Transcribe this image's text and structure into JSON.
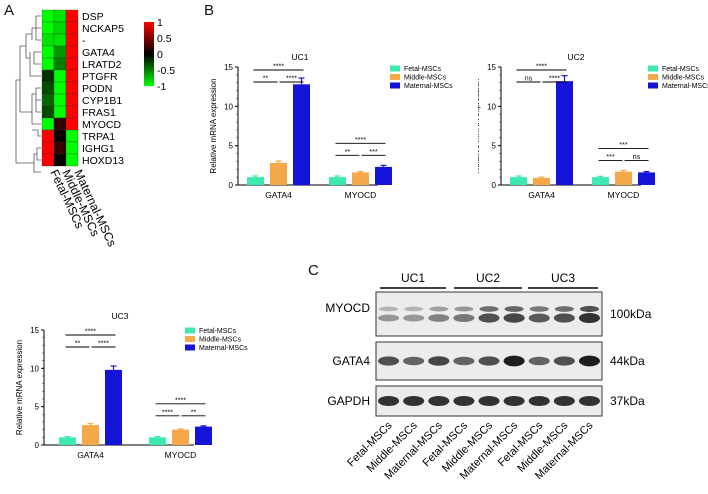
{
  "panels": {
    "A": {
      "letter": "A",
      "genes": [
        "DSP",
        "NCKAP5",
        "-",
        "GATA4",
        "LRATD2",
        "PTGFR",
        "PODN",
        "CYP1B1",
        "FRAS1",
        "MYOCD",
        "TRPA1",
        "IGHG1",
        "HOXD13"
      ],
      "samples": [
        "Fetal-MSCs",
        "Middle-MSCs",
        "Maternal-MSCs"
      ],
      "matrix": [
        [
          -1.0,
          -0.9,
          1.0
        ],
        [
          -1.0,
          -0.85,
          1.0
        ],
        [
          -0.9,
          -0.9,
          1.0
        ],
        [
          -1.0,
          -0.6,
          1.0
        ],
        [
          -1.0,
          -0.5,
          1.0
        ],
        [
          -0.2,
          -1.0,
          1.0
        ],
        [
          -0.3,
          -1.0,
          1.0
        ],
        [
          -0.4,
          -1.0,
          1.0
        ],
        [
          -0.3,
          -1.0,
          1.0
        ],
        [
          -1.0,
          0.2,
          1.0
        ],
        [
          1.0,
          0.0,
          -1.0
        ],
        [
          1.0,
          0.2,
          -1.0
        ],
        [
          1.0,
          0.0,
          -1.0
        ]
      ],
      "scale_ticks": [
        "1",
        "0.5",
        "0",
        "-0.5",
        "-1"
      ],
      "colors": {
        "high": "#ff0000",
        "mid": "#000000",
        "low": "#00ff00"
      }
    },
    "B": {
      "letter": "B"
    },
    "C": {
      "letter": "C"
    }
  },
  "chart_data": [
    {
      "type": "bar",
      "id": "UC1",
      "title": "UC1",
      "ylabel": "Relative mRNA expression",
      "ylim": [
        0,
        15
      ],
      "yticks": [
        "0",
        "5",
        "10",
        "15"
      ],
      "categories": [
        "GATA4",
        "MYOCD"
      ],
      "series": [
        {
          "name": "Fetal-MSCs",
          "values": [
            1.0,
            1.0
          ],
          "errors": [
            0.15,
            0.15
          ],
          "color": "#3de8b2"
        },
        {
          "name": "Middle-MSCs",
          "values": [
            2.8,
            1.6
          ],
          "errors": [
            0.25,
            0.1
          ],
          "color": "#f4a84a"
        },
        {
          "name": "Maternal-MSCs",
          "values": [
            12.8,
            2.3
          ],
          "errors": [
            0.8,
            0.2
          ],
          "color": "#1414d8"
        }
      ],
      "significance": {
        "GATA4": [
          {
            "from": 0,
            "to": 2,
            "label": "****"
          },
          {
            "from": 0,
            "to": 1,
            "label": "**"
          },
          {
            "from": 1,
            "to": 2,
            "label": "****"
          }
        ],
        "MYOCD": [
          {
            "from": 0,
            "to": 2,
            "label": "****"
          },
          {
            "from": 0,
            "to": 1,
            "label": "**"
          },
          {
            "from": 1,
            "to": 2,
            "label": "***"
          }
        ]
      }
    },
    {
      "type": "bar",
      "id": "UC2",
      "title": "UC2",
      "ylabel": "Relative mRNA expression",
      "ylim": [
        0,
        15
      ],
      "yticks": [
        "0",
        "5",
        "10",
        "15"
      ],
      "categories": [
        "GATA4",
        "MYOCD"
      ],
      "series": [
        {
          "name": "Fetal-MSCs",
          "values": [
            1.0,
            1.0
          ],
          "errors": [
            0.15,
            0.1
          ],
          "color": "#3de8b2"
        },
        {
          "name": "Middle-MSCs",
          "values": [
            0.9,
            1.7
          ],
          "errors": [
            0.1,
            0.15
          ],
          "color": "#f4a84a"
        },
        {
          "name": "Maternal-MSCs",
          "values": [
            13.2,
            1.6
          ],
          "errors": [
            0.7,
            0.1
          ],
          "color": "#1414d8"
        }
      ],
      "significance": {
        "GATA4": [
          {
            "from": 0,
            "to": 2,
            "label": "****"
          },
          {
            "from": 0,
            "to": 1,
            "label": "ns"
          },
          {
            "from": 1,
            "to": 2,
            "label": "****"
          }
        ],
        "MYOCD": [
          {
            "from": 0,
            "to": 2,
            "label": "***"
          },
          {
            "from": 0,
            "to": 1,
            "label": "***"
          },
          {
            "from": 1,
            "to": 2,
            "label": "ns"
          }
        ]
      }
    },
    {
      "type": "bar",
      "id": "UC3",
      "title": "UC3",
      "ylabel": "Relative mRNA expression",
      "ylim": [
        0,
        15
      ],
      "yticks": [
        "0",
        "5",
        "10",
        "15"
      ],
      "categories": [
        "GATA4",
        "MYOCD"
      ],
      "series": [
        {
          "name": "Fetal-MSCs",
          "values": [
            1.0,
            1.0
          ],
          "errors": [
            0.1,
            0.1
          ],
          "color": "#3de8b2"
        },
        {
          "name": "Middle-MSCs",
          "values": [
            2.6,
            2.0
          ],
          "errors": [
            0.2,
            0.1
          ],
          "color": "#f4a84a"
        },
        {
          "name": "Maternal-MSCs",
          "values": [
            9.8,
            2.4
          ],
          "errors": [
            0.5,
            0.1
          ],
          "color": "#1414d8"
        }
      ],
      "significance": {
        "GATA4": [
          {
            "from": 0,
            "to": 2,
            "label": "****"
          },
          {
            "from": 0,
            "to": 1,
            "label": "**"
          },
          {
            "from": 1,
            "to": 2,
            "label": "****"
          }
        ],
        "MYOCD": [
          {
            "from": 0,
            "to": 2,
            "label": "****"
          },
          {
            "from": 0,
            "to": 1,
            "label": "****"
          },
          {
            "from": 1,
            "to": 2,
            "label": "**"
          }
        ]
      }
    }
  ],
  "western": {
    "groups": [
      "UC1",
      "UC2",
      "UC3"
    ],
    "rows": [
      {
        "name": "MYOCD",
        "size": "100kDa"
      },
      {
        "name": "GATA4",
        "size": "44kDa"
      },
      {
        "name": "GAPDH",
        "size": "37kDa"
      }
    ],
    "lanes": [
      "Fetal-MSCs",
      "Middle-MSCs",
      "Maternal-MSCs",
      "Fetal-MSCs",
      "Middle-MSCs",
      "Maternal-MSCs",
      "Fetal-MSCs",
      "Middle-MSCs",
      "Maternal-MSCs"
    ],
    "intensities": {
      "MYOCD": [
        0.35,
        0.35,
        0.45,
        0.5,
        0.7,
        0.75,
        0.65,
        0.7,
        0.85
      ],
      "GATA4": [
        0.7,
        0.6,
        0.75,
        0.6,
        0.7,
        0.95,
        0.6,
        0.7,
        0.95
      ],
      "GAPDH": [
        0.85,
        0.85,
        0.85,
        0.85,
        0.85,
        0.85,
        0.85,
        0.85,
        0.85
      ]
    }
  }
}
